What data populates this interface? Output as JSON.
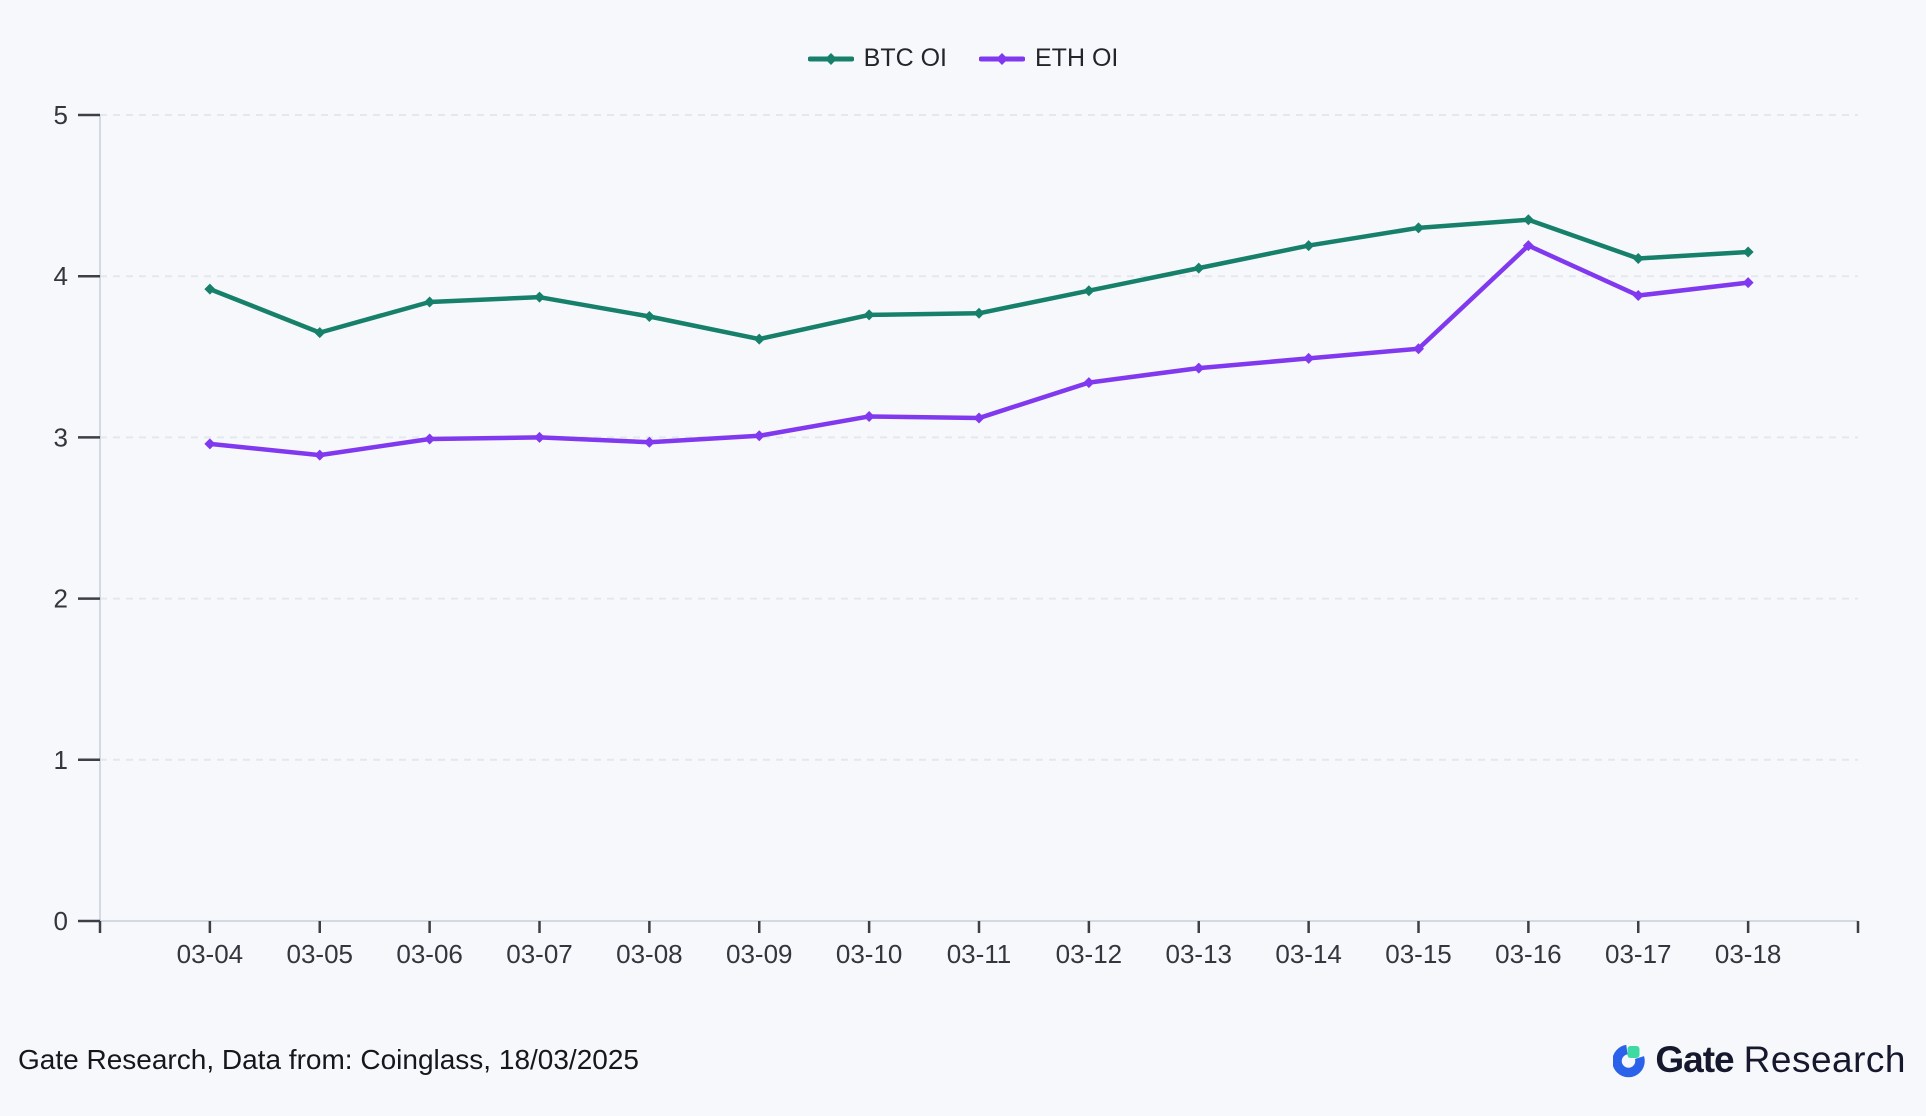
{
  "legend": [
    {
      "label": "BTC OI",
      "color": "#17806B"
    },
    {
      "label": "ETH OI",
      "color": "#8139F0"
    }
  ],
  "chart_data": {
    "type": "line",
    "categories": [
      "03-04",
      "03-05",
      "03-06",
      "03-07",
      "03-08",
      "03-09",
      "03-10",
      "03-11",
      "03-12",
      "03-13",
      "03-14",
      "03-15",
      "03-16",
      "03-17",
      "03-18"
    ],
    "series": [
      {
        "name": "BTC OI",
        "color": "#17806B",
        "values": [
          3.92,
          3.65,
          3.84,
          3.87,
          3.75,
          3.61,
          3.76,
          3.77,
          3.91,
          4.05,
          4.19,
          4.3,
          4.35,
          4.11,
          4.15
        ]
      },
      {
        "name": "ETH OI",
        "color": "#8139F0",
        "values": [
          2.96,
          2.89,
          2.99,
          3.0,
          2.97,
          3.01,
          3.13,
          3.12,
          3.34,
          3.43,
          3.49,
          3.55,
          4.19,
          3.88,
          3.96
        ]
      }
    ],
    "title": "",
    "xlabel": "",
    "ylabel": "",
    "ylim": [
      0,
      5
    ],
    "yticks": [
      0,
      1,
      2,
      3,
      4,
      5
    ],
    "grid": "horizontal-dashed",
    "legend_position": "top-center"
  },
  "footer": {
    "source_text": "Gate Research, Data from: Coinglass, 18/03/2025"
  },
  "logo": {
    "brand": "Gate",
    "suffix": "Research",
    "blue": "#2A62E9",
    "green": "#3FD9A4",
    "navy": "#16182D"
  },
  "colors": {
    "background": "#F7F8FB",
    "axis_line": "#D2DAE6",
    "grid_line": "#E4E7EE",
    "tick": "#3C3F46",
    "axis_label": "#33363D"
  }
}
